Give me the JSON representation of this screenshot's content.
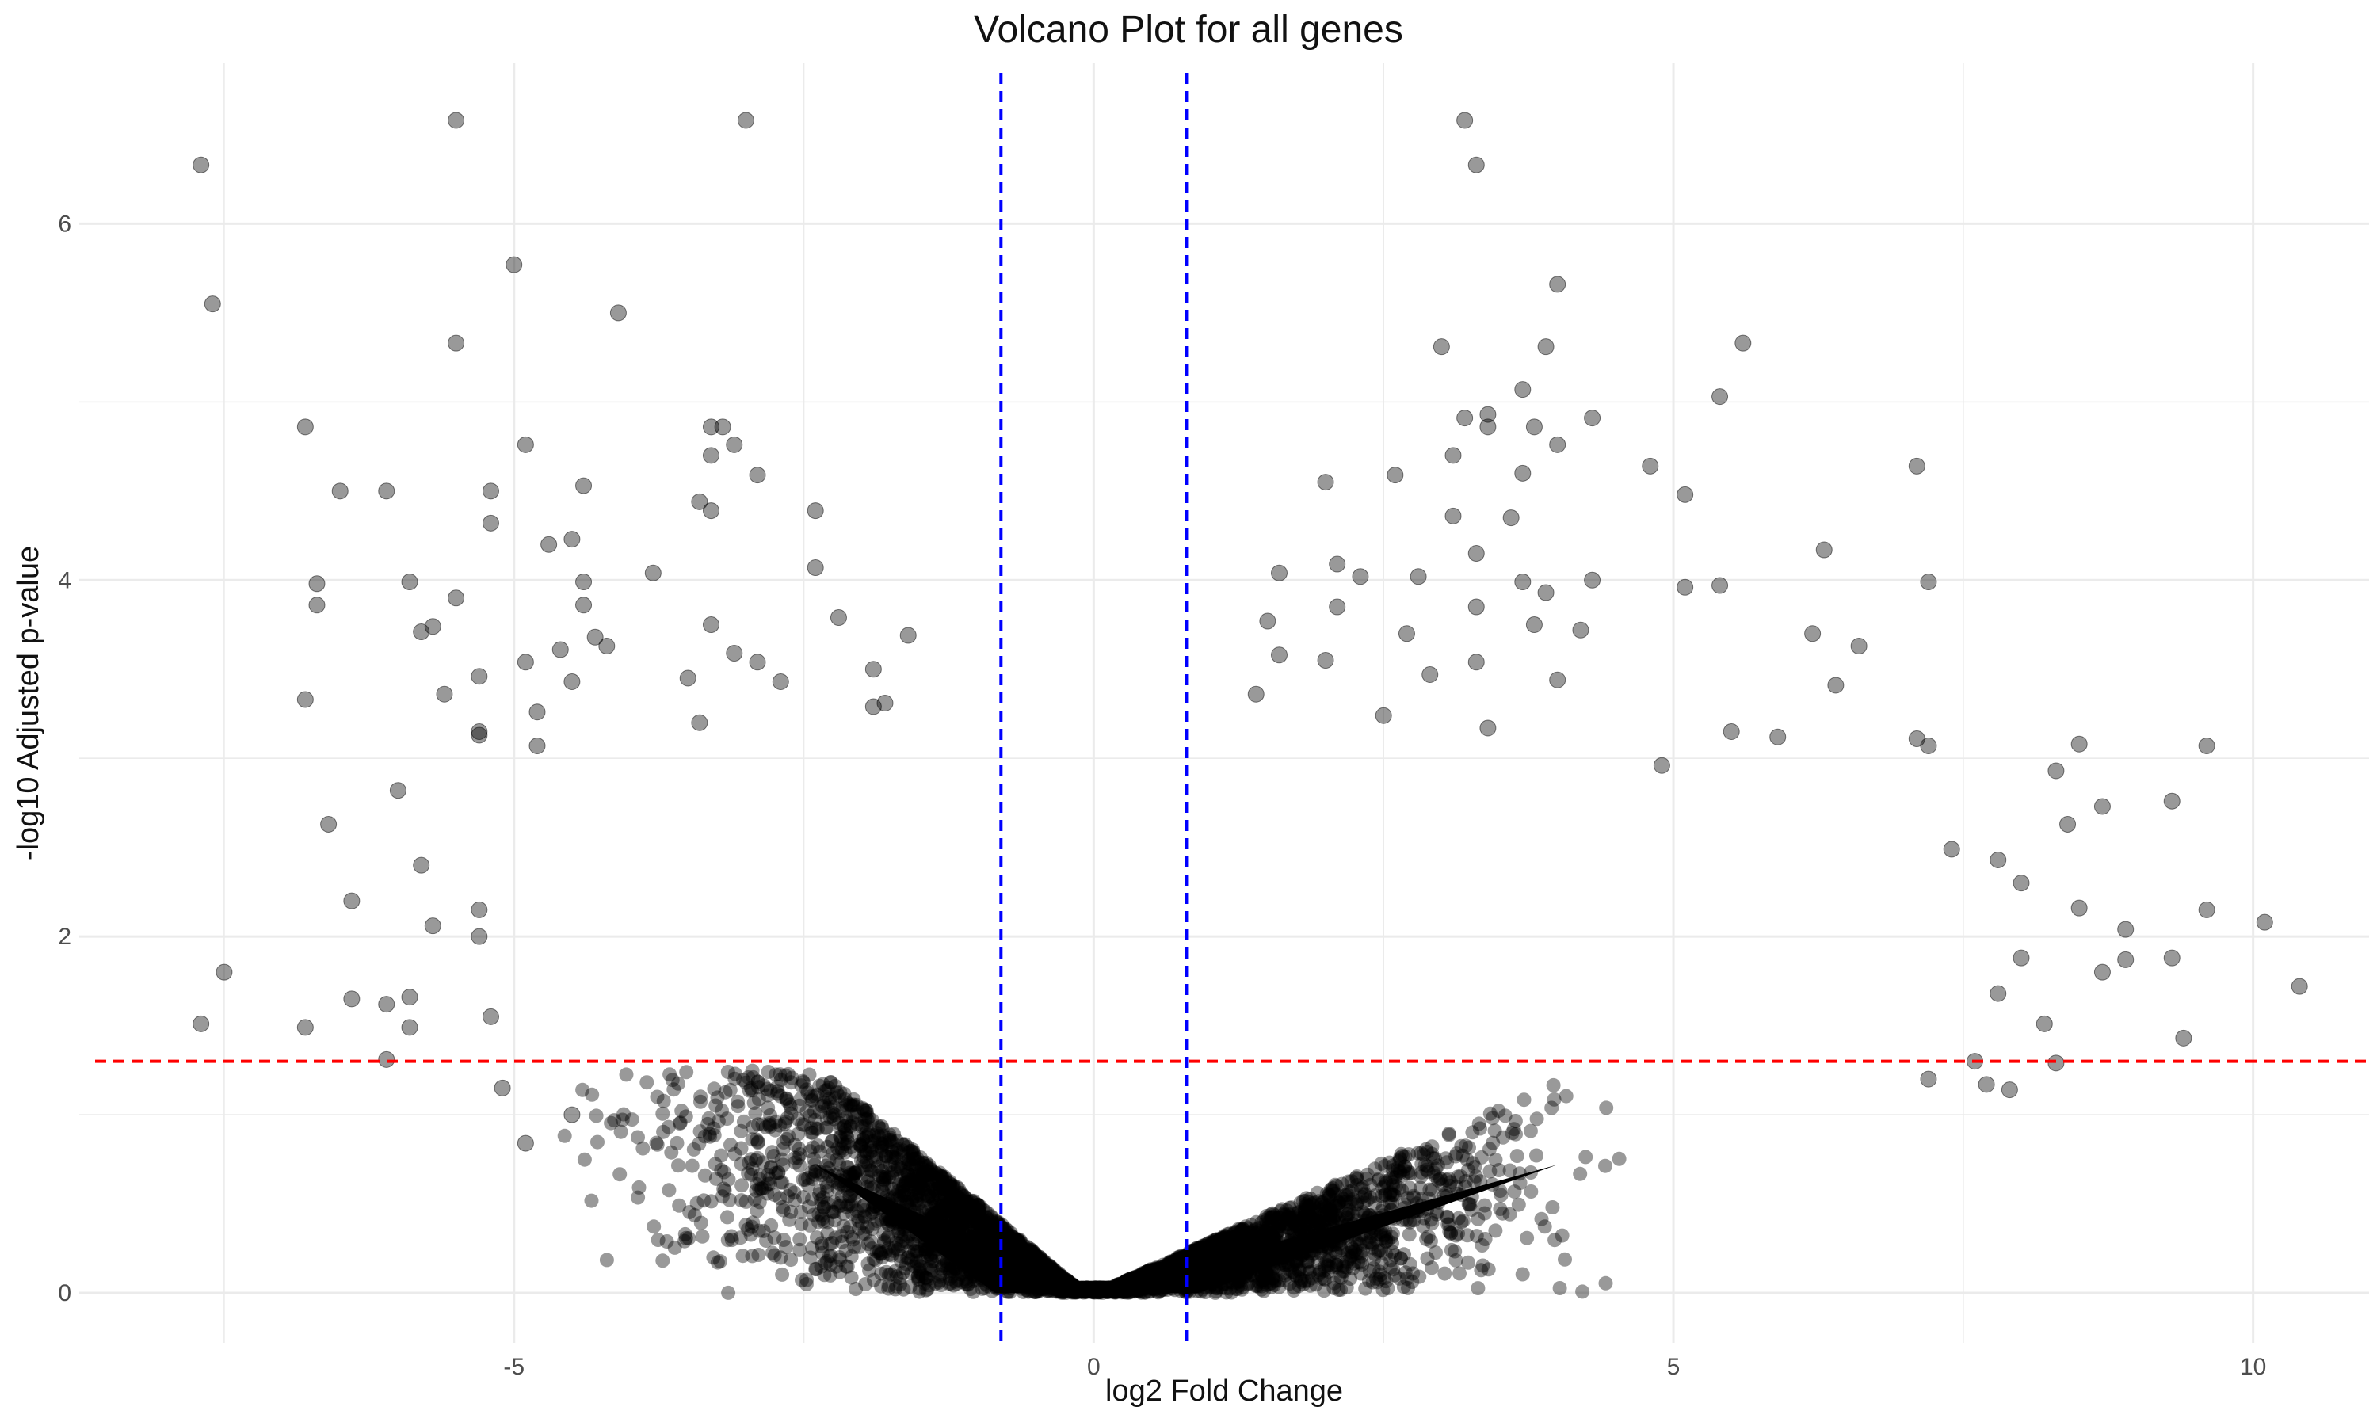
{
  "chart_data": {
    "type": "scatter",
    "title": "Volcano Plot for all genes",
    "xlabel": "log2 Fold Change",
    "ylabel": "-log10 Adjusted p-value",
    "xlim": [
      -8.75,
      11.0
    ],
    "ylim": [
      -0.28,
      6.9
    ],
    "x_ticks": [
      -5,
      0,
      5,
      10
    ],
    "y_ticks": [
      0,
      2,
      4,
      6
    ],
    "grid": true,
    "legend": "none",
    "point_color": "#000000",
    "point_opacity": 0.4,
    "thresholds": {
      "vertical": {
        "values": [
          -0.8,
          0.8
        ],
        "color": "#0000ff",
        "style": "dashed"
      },
      "horizontal": {
        "value": 1.3,
        "color": "#ff0000",
        "style": "dashed"
      }
    },
    "dense_cloud": {
      "description": "tens of thousands of non-significant genes forming a V-shaped cloud near the origin",
      "x_range": [
        -6.0,
        8.0
      ],
      "max_neglog10_p_edge": 1.3
    },
    "points": [
      {
        "x": -7.7,
        "y": 6.33
      },
      {
        "x": -7.6,
        "y": 5.55
      },
      {
        "x": -5.5,
        "y": 6.58
      },
      {
        "x": -3.0,
        "y": 6.58
      },
      {
        "x": -5.0,
        "y": 5.77
      },
      {
        "x": -4.1,
        "y": 5.5
      },
      {
        "x": -5.5,
        "y": 5.33
      },
      {
        "x": -6.8,
        "y": 4.86
      },
      {
        "x": -3.3,
        "y": 4.86
      },
      {
        "x": -3.2,
        "y": 4.86
      },
      {
        "x": -3.1,
        "y": 4.76
      },
      {
        "x": -4.9,
        "y": 4.76
      },
      {
        "x": -3.3,
        "y": 4.7
      },
      {
        "x": -2.9,
        "y": 4.59
      },
      {
        "x": -6.5,
        "y": 4.5
      },
      {
        "x": -6.1,
        "y": 4.5
      },
      {
        "x": -5.2,
        "y": 4.5
      },
      {
        "x": -4.4,
        "y": 4.53
      },
      {
        "x": -3.4,
        "y": 4.44
      },
      {
        "x": -3.3,
        "y": 4.39
      },
      {
        "x": -2.4,
        "y": 4.39
      },
      {
        "x": -5.2,
        "y": 4.32
      },
      {
        "x": -4.7,
        "y": 4.2
      },
      {
        "x": -4.5,
        "y": 4.23
      },
      {
        "x": -2.4,
        "y": 4.07
      },
      {
        "x": -3.8,
        "y": 4.04
      },
      {
        "x": -6.7,
        "y": 3.98
      },
      {
        "x": -5.9,
        "y": 3.99
      },
      {
        "x": -4.4,
        "y": 3.99
      },
      {
        "x": -5.5,
        "y": 3.9
      },
      {
        "x": -6.7,
        "y": 3.86
      },
      {
        "x": -4.4,
        "y": 3.86
      },
      {
        "x": -2.2,
        "y": 3.79
      },
      {
        "x": -3.3,
        "y": 3.75
      },
      {
        "x": -5.7,
        "y": 3.74
      },
      {
        "x": -5.8,
        "y": 3.71
      },
      {
        "x": -1.6,
        "y": 3.69
      },
      {
        "x": -4.3,
        "y": 3.68
      },
      {
        "x": -4.2,
        "y": 3.63
      },
      {
        "x": -3.1,
        "y": 3.59
      },
      {
        "x": -4.6,
        "y": 3.61
      },
      {
        "x": -4.9,
        "y": 3.54
      },
      {
        "x": -2.9,
        "y": 3.54
      },
      {
        "x": -1.9,
        "y": 3.5
      },
      {
        "x": -5.3,
        "y": 3.46
      },
      {
        "x": -4.5,
        "y": 3.43
      },
      {
        "x": -3.5,
        "y": 3.45
      },
      {
        "x": -2.7,
        "y": 3.43
      },
      {
        "x": -6.8,
        "y": 3.33
      },
      {
        "x": -5.6,
        "y": 3.36
      },
      {
        "x": -1.9,
        "y": 3.29
      },
      {
        "x": -1.8,
        "y": 3.31
      },
      {
        "x": -4.8,
        "y": 3.26
      },
      {
        "x": -3.4,
        "y": 3.2
      },
      {
        "x": -5.3,
        "y": 3.15
      },
      {
        "x": -5.3,
        "y": 3.13
      },
      {
        "x": -4.8,
        "y": 3.07
      },
      {
        "x": -6.6,
        "y": 2.63
      },
      {
        "x": -6.0,
        "y": 2.82
      },
      {
        "x": -6.4,
        "y": 2.2
      },
      {
        "x": -5.8,
        "y": 2.4
      },
      {
        "x": -5.7,
        "y": 2.06
      },
      {
        "x": -5.3,
        "y": 2.15
      },
      {
        "x": -5.3,
        "y": 2.0
      },
      {
        "x": -7.5,
        "y": 1.8
      },
      {
        "x": -7.7,
        "y": 1.51
      },
      {
        "x": -6.8,
        "y": 1.49
      },
      {
        "x": -6.4,
        "y": 1.65
      },
      {
        "x": -6.1,
        "y": 1.62
      },
      {
        "x": -5.9,
        "y": 1.66
      },
      {
        "x": -5.9,
        "y": 1.49
      },
      {
        "x": -6.1,
        "y": 1.31
      },
      {
        "x": -5.2,
        "y": 1.55
      },
      {
        "x": -5.1,
        "y": 1.15
      },
      {
        "x": -4.9,
        "y": 0.84
      },
      {
        "x": -4.5,
        "y": 1.0
      },
      {
        "x": 3.2,
        "y": 6.58
      },
      {
        "x": 3.3,
        "y": 6.33
      },
      {
        "x": 4.0,
        "y": 5.66
      },
      {
        "x": 5.6,
        "y": 5.33
      },
      {
        "x": 3.0,
        "y": 5.31
      },
      {
        "x": 3.9,
        "y": 5.31
      },
      {
        "x": 5.4,
        "y": 5.03
      },
      {
        "x": 3.7,
        "y": 5.07
      },
      {
        "x": 3.2,
        "y": 4.91
      },
      {
        "x": 3.4,
        "y": 4.93
      },
      {
        "x": 4.3,
        "y": 4.91
      },
      {
        "x": 3.4,
        "y": 4.86
      },
      {
        "x": 3.8,
        "y": 4.86
      },
      {
        "x": 4.0,
        "y": 4.76
      },
      {
        "x": 3.1,
        "y": 4.7
      },
      {
        "x": 4.8,
        "y": 4.64
      },
      {
        "x": 7.1,
        "y": 4.64
      },
      {
        "x": 3.7,
        "y": 4.6
      },
      {
        "x": 2.6,
        "y": 4.59
      },
      {
        "x": 2.0,
        "y": 4.55
      },
      {
        "x": 5.1,
        "y": 4.48
      },
      {
        "x": 3.1,
        "y": 4.36
      },
      {
        "x": 3.6,
        "y": 4.35
      },
      {
        "x": 6.3,
        "y": 4.17
      },
      {
        "x": 3.3,
        "y": 4.15
      },
      {
        "x": 2.1,
        "y": 4.09
      },
      {
        "x": 1.6,
        "y": 4.04
      },
      {
        "x": 2.3,
        "y": 4.02
      },
      {
        "x": 7.2,
        "y": 3.99
      },
      {
        "x": 5.1,
        "y": 3.96
      },
      {
        "x": 5.4,
        "y": 3.97
      },
      {
        "x": 4.3,
        "y": 4.0
      },
      {
        "x": 3.7,
        "y": 3.99
      },
      {
        "x": 3.9,
        "y": 3.93
      },
      {
        "x": 2.8,
        "y": 4.02
      },
      {
        "x": 3.3,
        "y": 3.85
      },
      {
        "x": 2.1,
        "y": 3.85
      },
      {
        "x": 3.8,
        "y": 3.75
      },
      {
        "x": 6.2,
        "y": 3.7
      },
      {
        "x": 1.5,
        "y": 3.77
      },
      {
        "x": 4.2,
        "y": 3.72
      },
      {
        "x": 2.7,
        "y": 3.7
      },
      {
        "x": 6.6,
        "y": 3.63
      },
      {
        "x": 1.6,
        "y": 3.58
      },
      {
        "x": 2.0,
        "y": 3.55
      },
      {
        "x": 3.3,
        "y": 3.54
      },
      {
        "x": 2.9,
        "y": 3.47
      },
      {
        "x": 4.0,
        "y": 3.44
      },
      {
        "x": 6.4,
        "y": 3.41
      },
      {
        "x": 1.4,
        "y": 3.36
      },
      {
        "x": 2.5,
        "y": 3.24
      },
      {
        "x": 3.4,
        "y": 3.17
      },
      {
        "x": 5.9,
        "y": 3.12
      },
      {
        "x": 5.5,
        "y": 3.15
      },
      {
        "x": 7.1,
        "y": 3.11
      },
      {
        "x": 7.2,
        "y": 3.07
      },
      {
        "x": 8.5,
        "y": 3.08
      },
      {
        "x": 9.6,
        "y": 3.07
      },
      {
        "x": 4.9,
        "y": 2.96
      },
      {
        "x": 8.3,
        "y": 2.93
      },
      {
        "x": 9.3,
        "y": 2.76
      },
      {
        "x": 8.7,
        "y": 2.73
      },
      {
        "x": 8.4,
        "y": 2.63
      },
      {
        "x": 7.4,
        "y": 2.49
      },
      {
        "x": 7.8,
        "y": 2.43
      },
      {
        "x": 8.0,
        "y": 2.3
      },
      {
        "x": 8.5,
        "y": 2.16
      },
      {
        "x": 9.6,
        "y": 2.15
      },
      {
        "x": 10.1,
        "y": 2.08
      },
      {
        "x": 8.9,
        "y": 2.04
      },
      {
        "x": 8.7,
        "y": 1.8
      },
      {
        "x": 8.9,
        "y": 1.87
      },
      {
        "x": 9.3,
        "y": 1.88
      },
      {
        "x": 10.4,
        "y": 1.72
      },
      {
        "x": 8.0,
        "y": 1.88
      },
      {
        "x": 7.8,
        "y": 1.68
      },
      {
        "x": 8.2,
        "y": 1.51
      },
      {
        "x": 8.3,
        "y": 1.29
      },
      {
        "x": 9.4,
        "y": 1.43
      },
      {
        "x": 7.6,
        "y": 1.3
      },
      {
        "x": 7.9,
        "y": 1.14
      },
      {
        "x": 7.7,
        "y": 1.17
      },
      {
        "x": 7.2,
        "y": 1.2
      }
    ]
  }
}
